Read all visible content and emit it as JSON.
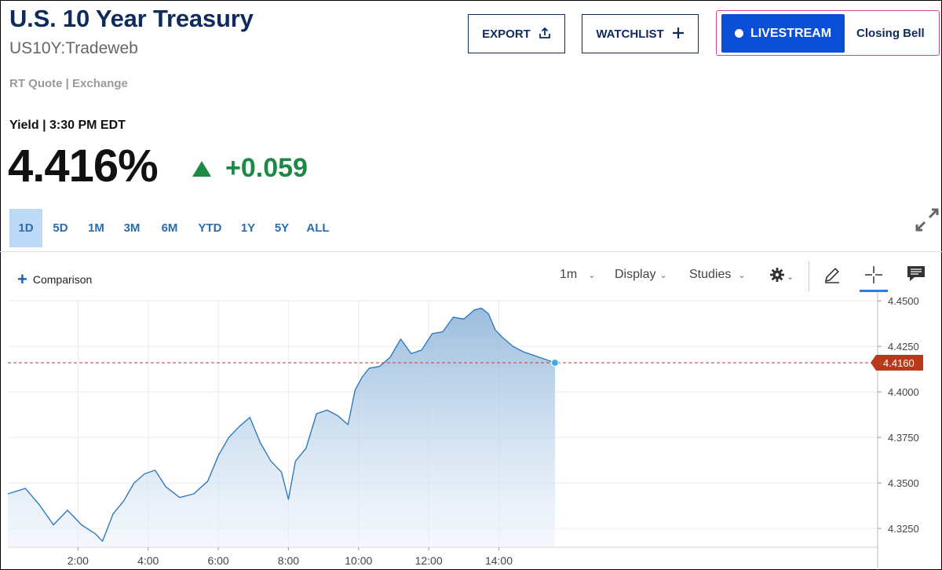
{
  "header": {
    "title": "U.S. 10 Year Treasury",
    "symbol": "US10Y:Tradeweb",
    "quote_source": "RT Quote | Exchange"
  },
  "actions": {
    "export_label": "EXPORT",
    "watchlist_label": "WATCHLIST",
    "livestream_label": "LIVESTREAM",
    "closing_bell_label": "Closing Bell"
  },
  "quote": {
    "yield_label": "Yield | 3:30 PM EDT",
    "price": "4.416%",
    "change": "+0.059",
    "change_color": "#1c8a45"
  },
  "ranges": [
    "1D",
    "5D",
    "1M",
    "3M",
    "6M",
    "YTD",
    "1Y",
    "5Y",
    "ALL"
  ],
  "active_range": "1D",
  "toolbar": {
    "comparison_label": "Comparison",
    "interval_label": "1m",
    "display_label": "Display",
    "studies_label": "Studies",
    "icons": [
      "gear-icon",
      "pencil-icon",
      "crosshair-icon",
      "comment-icon"
    ]
  },
  "colors": {
    "brand": "#0f2a5c",
    "accent": "#0b4fd8",
    "up": "#1c8a45",
    "line": "#2f7bbf",
    "last_price_tag": "#b83a1a"
  },
  "chart_data": {
    "type": "area",
    "x_ticks": [
      "2:00",
      "4:00",
      "6:00",
      "8:00",
      "10:00",
      "12:00",
      "14:00"
    ],
    "x_tick_hours": [
      2,
      4,
      6,
      8,
      10,
      12,
      14
    ],
    "x_range_hours": [
      0,
      24.8
    ],
    "y_ticks": [
      "4.4500",
      "4.4250",
      "4.4000",
      "4.3750",
      "4.3500",
      "4.3250"
    ],
    "y_tick_values": [
      4.45,
      4.425,
      4.4,
      4.375,
      4.35,
      4.325
    ],
    "ylim": [
      4.3147,
      4.4505
    ],
    "last_value": 4.416,
    "last_value_label": "4.4160",
    "grid": true,
    "series": [
      {
        "x": [
          0,
          0.5,
          0.9,
          1.3,
          1.7,
          2.1,
          2.5,
          2.7,
          3.0,
          3.3,
          3.6,
          3.9,
          4.2,
          4.5,
          4.9,
          5.3,
          5.7,
          6.0,
          6.3,
          6.6,
          6.9,
          7.2,
          7.5,
          7.8,
          8.0,
          8.2,
          8.5,
          8.8,
          9.1,
          9.4,
          9.7,
          9.9,
          10.1,
          10.3,
          10.6,
          10.9,
          11.2,
          11.5,
          11.8,
          12.1,
          12.4,
          12.7,
          13.0,
          13.3,
          13.5,
          13.7,
          13.9,
          14.1,
          14.4,
          14.7,
          15.0,
          15.3,
          15.6
        ],
        "values": [
          4.344,
          4.347,
          4.338,
          4.327,
          4.335,
          4.327,
          4.322,
          4.318,
          4.333,
          4.34,
          4.35,
          4.355,
          4.357,
          4.348,
          4.342,
          4.344,
          4.351,
          4.365,
          4.375,
          4.381,
          4.386,
          4.372,
          4.362,
          4.356,
          4.341,
          4.362,
          4.369,
          4.388,
          4.39,
          4.387,
          4.382,
          4.401,
          4.408,
          4.413,
          4.414,
          4.419,
          4.429,
          4.421,
          4.423,
          4.432,
          4.433,
          4.441,
          4.44,
          4.445,
          4.446,
          4.443,
          4.434,
          4.43,
          4.425,
          4.422,
          4.42,
          4.418,
          4.416
        ]
      }
    ]
  }
}
